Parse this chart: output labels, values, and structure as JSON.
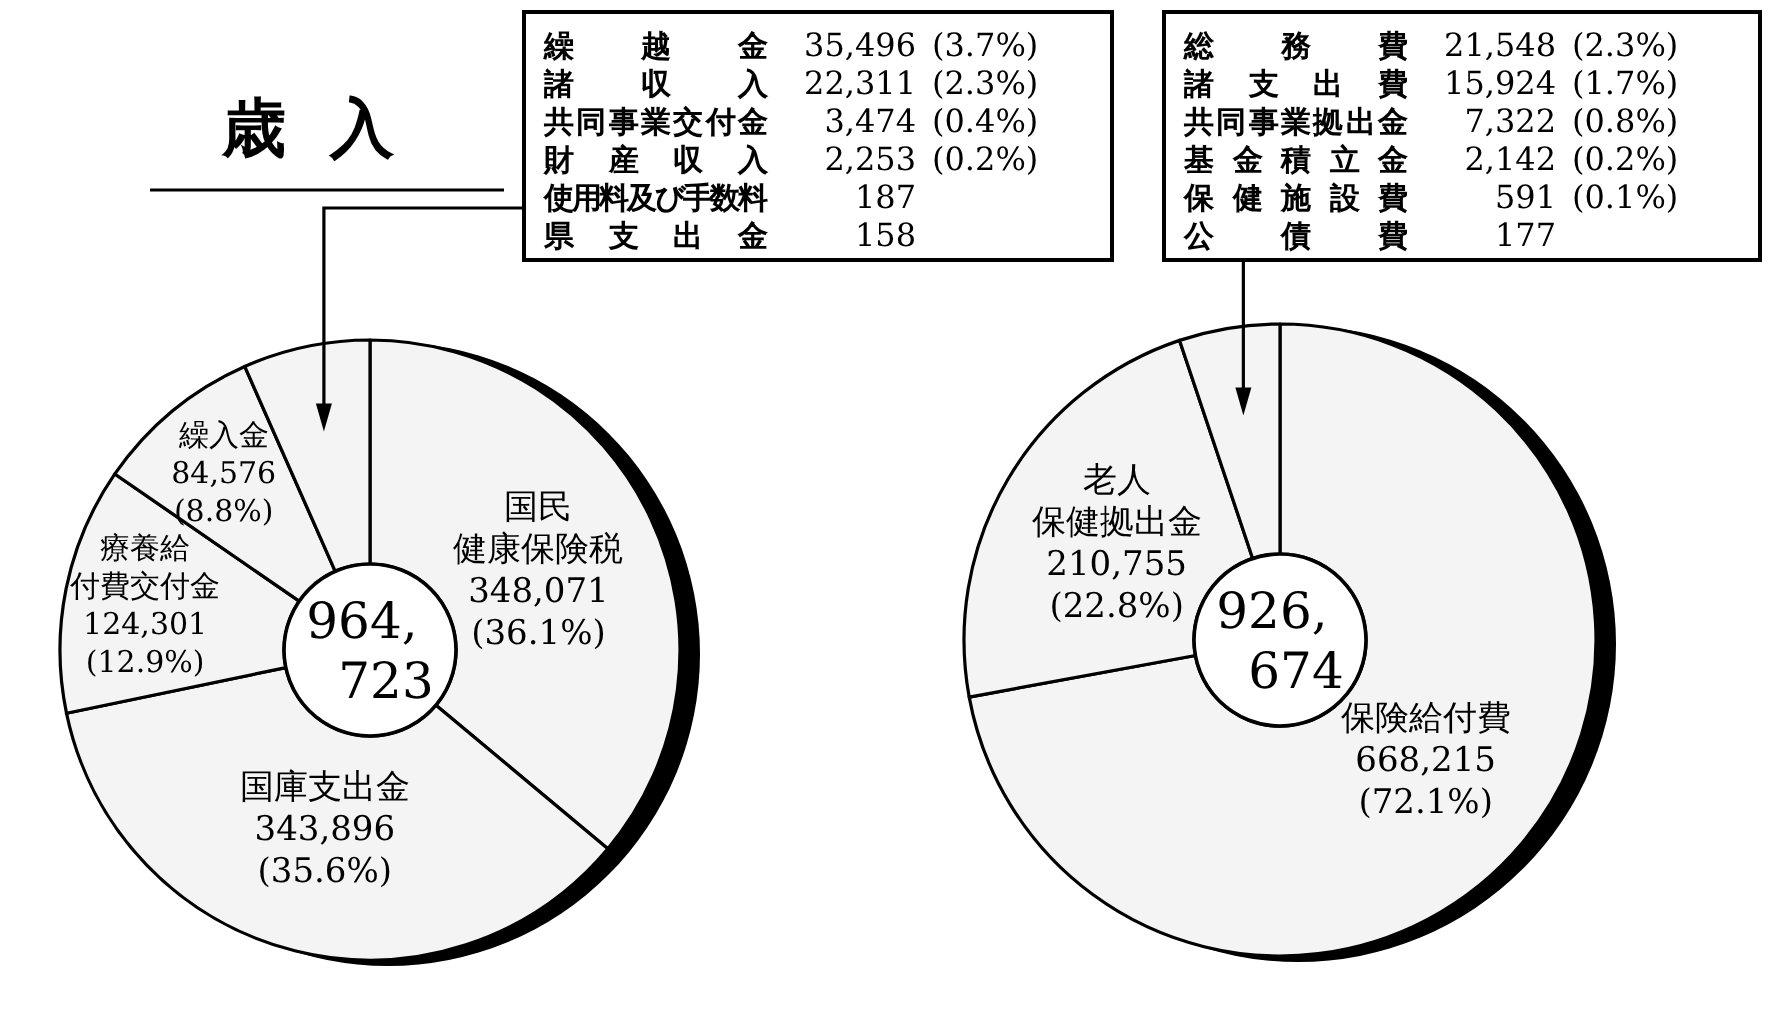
{
  "chart_data": [
    {
      "type": "donut",
      "title": "歳入",
      "categories": [
        "国民健康保険税",
        "国庫支出金",
        "療養給付費交付金",
        "繰入金",
        null
      ],
      "values": [
        348071,
        343896,
        124301,
        84576,
        63879
      ],
      "value_labels": [
        "348,071 (36.1%)",
        "343,896 (35.6%)",
        "124,301 (12.9%)",
        "84,576 (8.8%)",
        null
      ],
      "colors": [
        "#f4f4f4",
        "#f4f4f4",
        "#f4f4f4",
        "#f4f4f4",
        "#f4f4f4"
      ],
      "annotations": [
        "964,723"
      ]
    },
    {
      "type": "other",
      "categories": [
        "繰越金",
        "諸収入",
        "共同事業交付金",
        "財産収入",
        "使用料及び手数料",
        "県支出金"
      ],
      "value_labels": [
        "35,496 (3.7%)",
        "22,311 (2.3%)",
        "3,474 (0.4%)",
        "2,253 (0.2%)",
        "187",
        "158"
      ]
    },
    {
      "type": "donut",
      "categories": [
        "保険給付費",
        "老人保健拠出金",
        null
      ],
      "values": [
        668215,
        210755,
        47704
      ],
      "value_labels": [
        "668,215 (72.1%)",
        "210,755 (22.8%)",
        null
      ],
      "colors": [
        "#f4f4f4",
        "#f4f4f4",
        "#f4f4f4"
      ],
      "annotations": [
        "926,674"
      ]
    },
    {
      "type": "other",
      "categories": [
        "総務費",
        "諸支出費",
        "共同事業拠出金",
        "基金積立金",
        "保健施設費",
        "公債費"
      ],
      "value_labels": [
        "21,548 (2.3%)",
        "15,924 (1.7%)",
        "7,322 (0.8%)",
        "2,142 (0.2%)",
        "591 (0.1%)",
        "177"
      ]
    }
  ]
}
